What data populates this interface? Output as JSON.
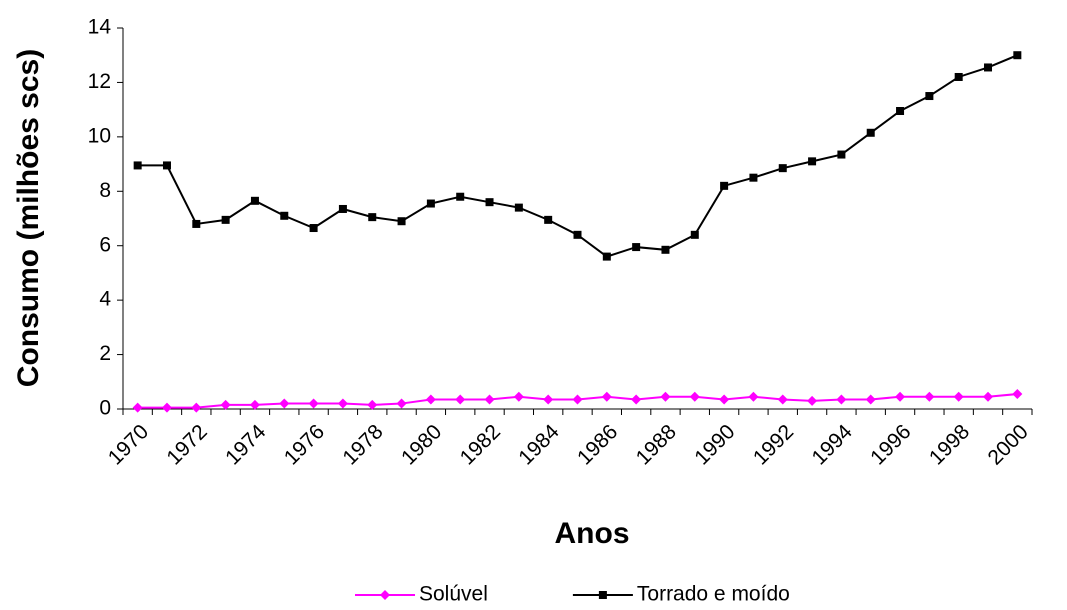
{
  "chart_data": {
    "type": "line",
    "x_label": "Anos",
    "y_label": "Consumo (milhões scs)",
    "categories": [
      "1970",
      null,
      "1972",
      null,
      "1974",
      null,
      "1976",
      null,
      "1978",
      null,
      "1980",
      null,
      "1982",
      null,
      "1984",
      null,
      "1986",
      null,
      "1988",
      null,
      "1990",
      null,
      "1992",
      null,
      "1994",
      null,
      "1996",
      null,
      "1998",
      null,
      "2000"
    ],
    "series": [
      {
        "name": "Solúvel",
        "color": "#ff00ff",
        "marker": "diamond",
        "values": [
          0.05,
          0.05,
          0.05,
          0.15,
          0.15,
          0.2,
          0.2,
          0.2,
          0.15,
          0.2,
          0.35,
          0.35,
          0.35,
          0.45,
          0.35,
          0.35,
          0.45,
          0.35,
          0.45,
          0.45,
          0.35,
          0.45,
          0.35,
          0.3,
          0.35,
          0.35,
          0.45,
          0.45,
          0.45,
          0.45,
          0.55
        ]
      },
      {
        "name": "Torrado e moído",
        "color": "#000000",
        "marker": "square",
        "values": [
          8.95,
          8.95,
          6.8,
          6.95,
          7.65,
          7.1,
          6.65,
          7.35,
          7.05,
          6.9,
          7.55,
          7.8,
          7.6,
          7.4,
          6.95,
          6.4,
          5.6,
          5.95,
          5.85,
          6.4,
          8.2,
          8.5,
          8.85,
          9.1,
          9.35,
          10.15,
          10.95,
          11.5,
          12.2,
          12.55,
          13.0
        ]
      }
    ],
    "ylim": [
      0,
      14
    ],
    "yticks": [
      0,
      2,
      4,
      6,
      8,
      10,
      12,
      14
    ],
    "grid": false,
    "legend": "bottom"
  }
}
